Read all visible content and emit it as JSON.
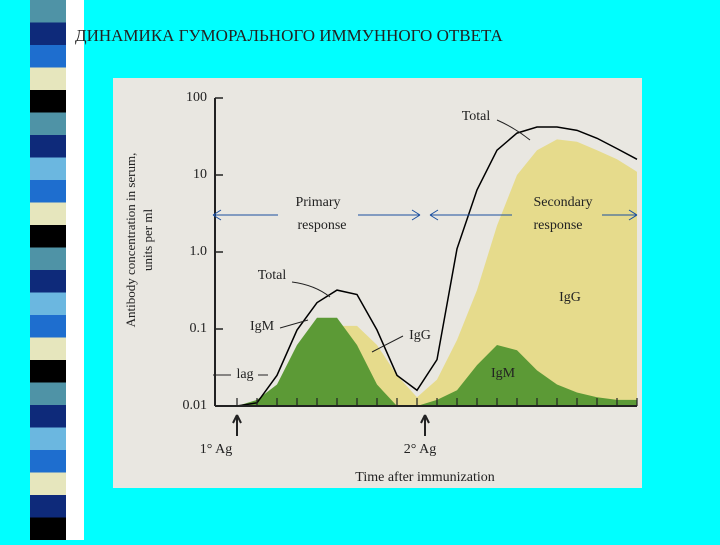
{
  "slide_title": "ДИНАМИКА ГУМОРАЛЬНОГО ИММУННОГО ОТВЕТА",
  "chart_data": {
    "type": "area",
    "log_scale": true,
    "y_label": [
      "Antibody concentration in serum,",
      "units per ml"
    ],
    "x_label": "Time after immunization",
    "categories": [
      null,
      null,
      null,
      null,
      null,
      null,
      null,
      null,
      null,
      null,
      null,
      null,
      null,
      null,
      null,
      null,
      null,
      null,
      null,
      null,
      null
    ],
    "series": [
      {
        "name": "IgG",
        "color": "#e6db8c",
        "style": "area",
        "values": [
          0.01,
          0.011,
          0.014,
          0.029,
          0.062,
          0.11,
          0.11,
          0.062,
          0.025,
          0.013,
          0.022,
          0.072,
          0.32,
          2.2,
          10,
          21,
          29,
          27,
          21,
          16,
          11
        ]
      },
      {
        "name": "IgM",
        "color": "#5c9a36",
        "style": "area",
        "values": [
          0.01,
          0.012,
          0.019,
          0.062,
          0.14,
          0.14,
          0.062,
          0.019,
          0.01,
          0.01,
          0.012,
          0.016,
          0.034,
          0.062,
          0.053,
          0.029,
          0.019,
          0.015,
          0.013,
          0.012,
          0.012
        ]
      },
      {
        "name": "Total",
        "color": "#000000",
        "style": "line",
        "values": [
          0.01,
          0.011,
          0.025,
          0.097,
          0.22,
          0.32,
          0.28,
          0.097,
          0.025,
          0.016,
          0.04,
          1.1,
          6.4,
          21,
          35,
          42,
          42,
          38,
          30,
          22,
          16
        ]
      }
    ],
    "ylim": [
      0.01,
      100
    ],
    "yticks": [
      100,
      10,
      {
        "value": 1,
        "label": "1.0"
      },
      0.1,
      0.01
    ],
    "annotations": {
      "primary_total": "Total",
      "primary_igm": "IgM",
      "primary_igg": "IgG",
      "lag": "lag",
      "primary_response": [
        "Primary",
        "response"
      ],
      "secondary_response": [
        "Secondary",
        "response"
      ],
      "first_antigen": "1° Ag",
      "second_antigen": "2° Ag"
    }
  }
}
